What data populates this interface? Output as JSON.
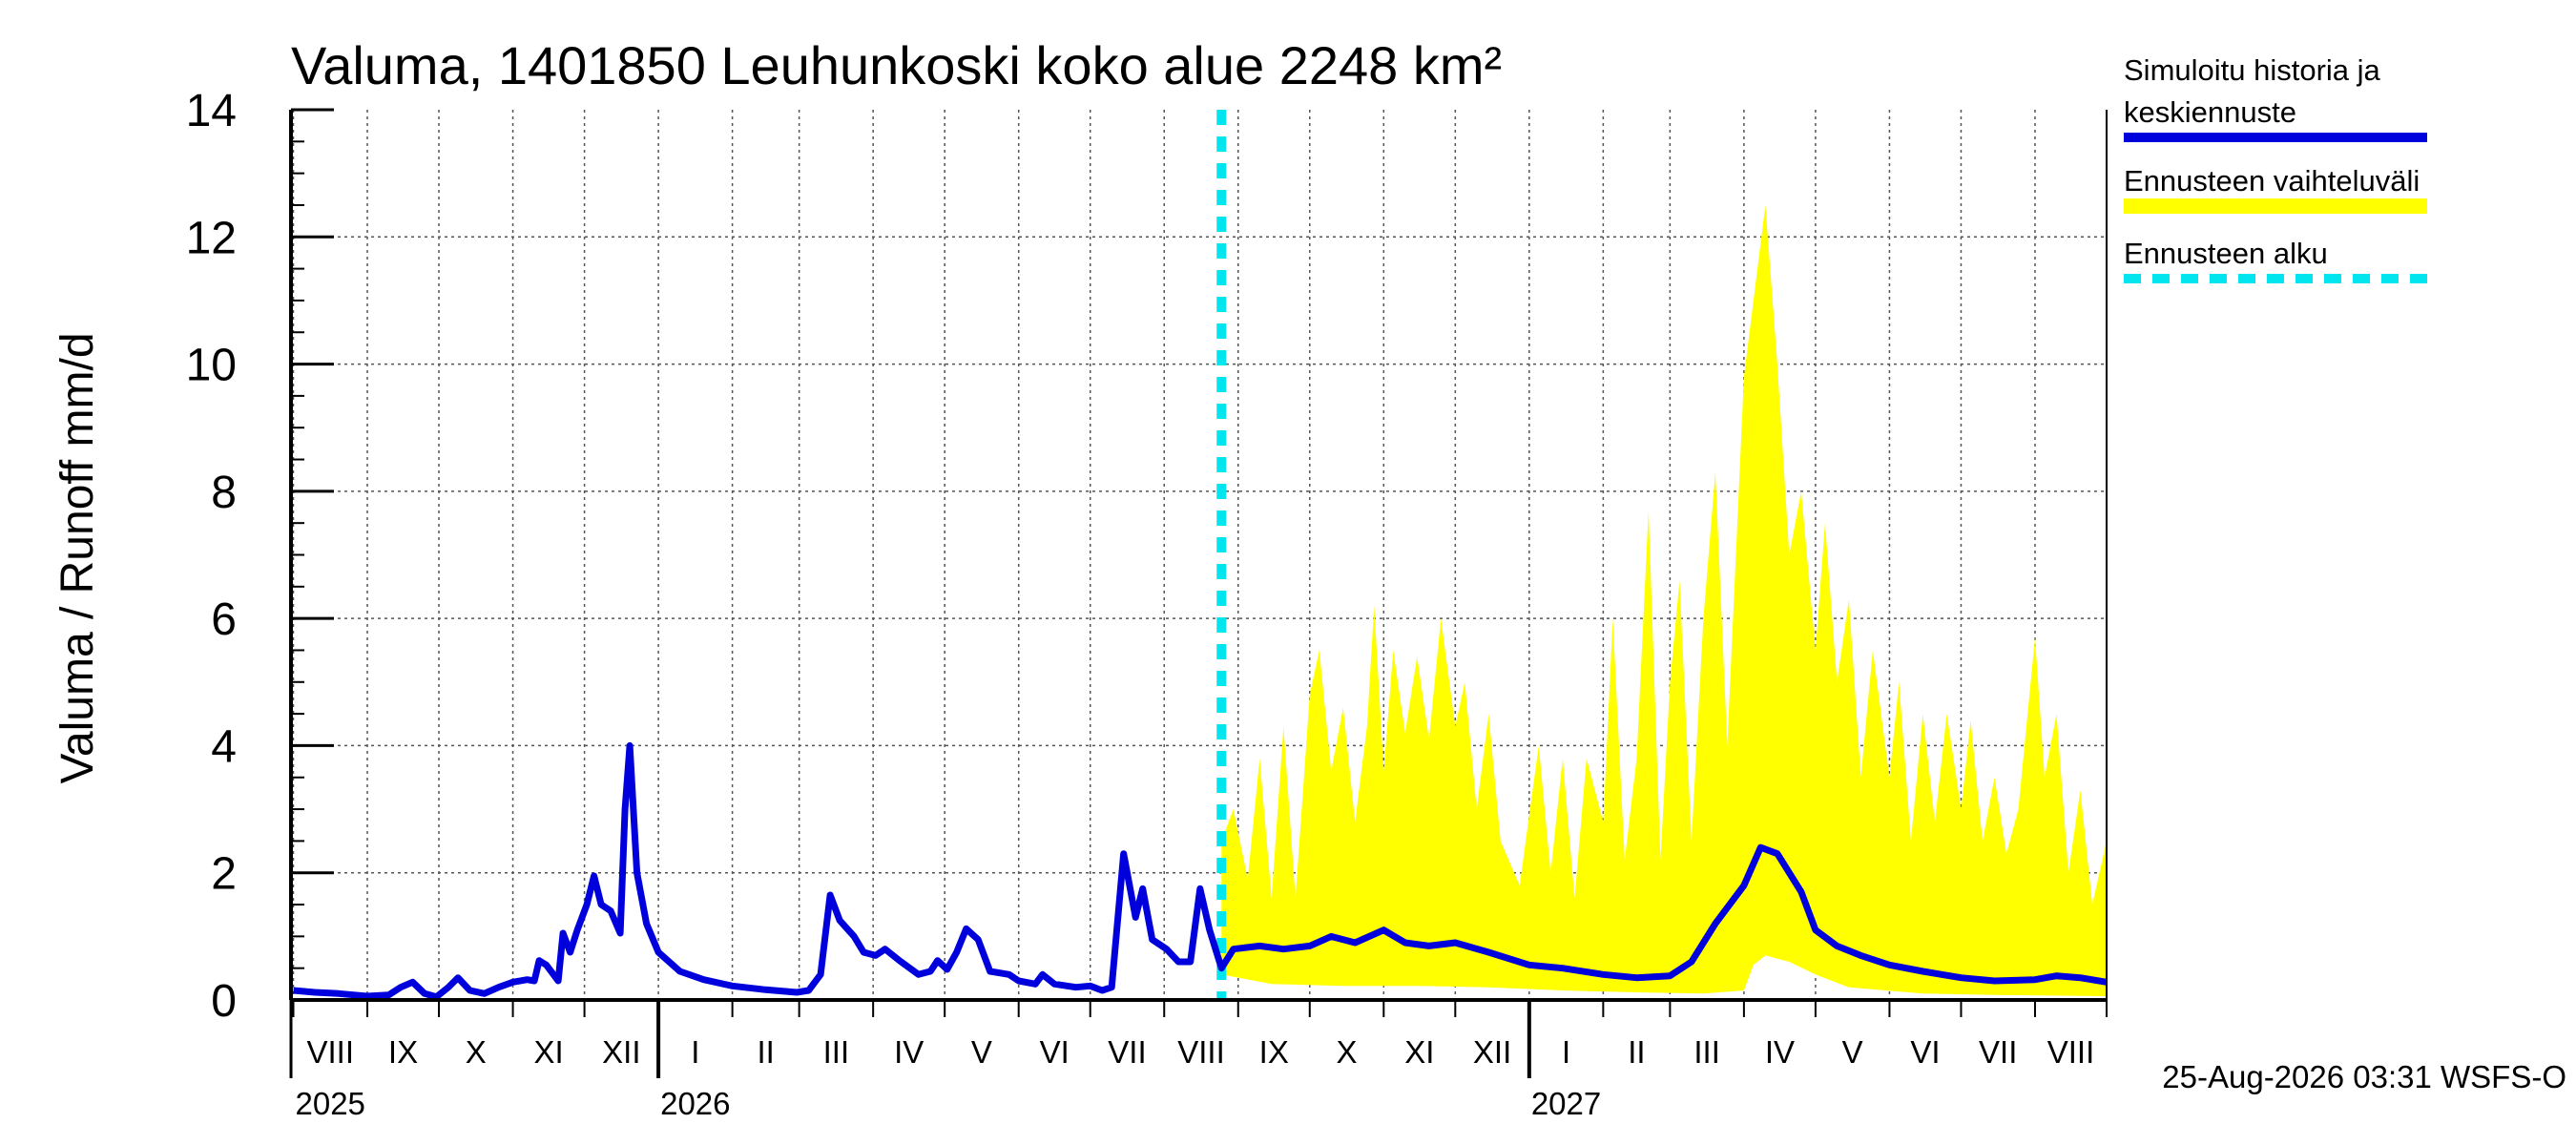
{
  "chart_data": {
    "type": "area",
    "title": "Valuma, 1401850 Leuhunkoski koko alue 2248 km²",
    "ylabel": "Valuma / Runoff    mm/d",
    "ylim": [
      0,
      14
    ],
    "yticks": [
      0,
      2,
      4,
      6,
      8,
      10,
      12,
      14
    ],
    "grid": true,
    "legend_position": "right",
    "x_axis": {
      "start": "2025-07-31",
      "end": "2027-08-31",
      "month_labels": [
        "VIII",
        "IX",
        "X",
        "XI",
        "XII",
        "I",
        "II",
        "III",
        "IV",
        "V",
        "VI",
        "VII",
        "VIII",
        "IX",
        "X",
        "XI",
        "XII",
        "I",
        "II",
        "III",
        "IV",
        "V",
        "VI",
        "VII",
        "VIII"
      ],
      "year_labels": [
        {
          "label": "2025",
          "date": "2025-08-01"
        },
        {
          "label": "2026",
          "date": "2026-01-01"
        },
        {
          "label": "2027",
          "date": "2027-01-01"
        }
      ]
    },
    "forecast_start": "2026-08-25",
    "series": [
      {
        "name": "Simuloitu historia ja keskiennuste",
        "color": "#0000dd",
        "points": [
          [
            "2025-08-01",
            0.15
          ],
          [
            "2025-08-10",
            0.12
          ],
          [
            "2025-08-20",
            0.1
          ],
          [
            "2025-09-01",
            0.06
          ],
          [
            "2025-09-10",
            0.08
          ],
          [
            "2025-09-15",
            0.2
          ],
          [
            "2025-09-20",
            0.28
          ],
          [
            "2025-09-25",
            0.1
          ],
          [
            "2025-09-30",
            0.05
          ],
          [
            "2025-10-05",
            0.2
          ],
          [
            "2025-10-09",
            0.35
          ],
          [
            "2025-10-14",
            0.15
          ],
          [
            "2025-10-20",
            0.1
          ],
          [
            "2025-10-26",
            0.2
          ],
          [
            "2025-11-01",
            0.28
          ],
          [
            "2025-11-07",
            0.32
          ],
          [
            "2025-11-10",
            0.3
          ],
          [
            "2025-11-12",
            0.62
          ],
          [
            "2025-11-15",
            0.55
          ],
          [
            "2025-11-18",
            0.4
          ],
          [
            "2025-11-20",
            0.3
          ],
          [
            "2025-11-22",
            1.05
          ],
          [
            "2025-11-25",
            0.75
          ],
          [
            "2025-11-28",
            1.1
          ],
          [
            "2025-12-02",
            1.5
          ],
          [
            "2025-12-05",
            1.95
          ],
          [
            "2025-12-08",
            1.5
          ],
          [
            "2025-12-12",
            1.4
          ],
          [
            "2025-12-16",
            1.05
          ],
          [
            "2025-12-18",
            3.0
          ],
          [
            "2025-12-20",
            4.0
          ],
          [
            "2025-12-23",
            2.0
          ],
          [
            "2025-12-27",
            1.2
          ],
          [
            "2026-01-01",
            0.75
          ],
          [
            "2026-01-10",
            0.45
          ],
          [
            "2026-01-20",
            0.32
          ],
          [
            "2026-02-01",
            0.22
          ],
          [
            "2026-02-15",
            0.16
          ],
          [
            "2026-02-28",
            0.12
          ],
          [
            "2026-03-05",
            0.15
          ],
          [
            "2026-03-10",
            0.4
          ],
          [
            "2026-03-14",
            1.65
          ],
          [
            "2026-03-18",
            1.25
          ],
          [
            "2026-03-24",
            1.0
          ],
          [
            "2026-03-28",
            0.75
          ],
          [
            "2026-04-02",
            0.7
          ],
          [
            "2026-04-06",
            0.8
          ],
          [
            "2026-04-12",
            0.62
          ],
          [
            "2026-04-20",
            0.4
          ],
          [
            "2026-04-25",
            0.45
          ],
          [
            "2026-04-28",
            0.62
          ],
          [
            "2026-05-02",
            0.48
          ],
          [
            "2026-05-06",
            0.75
          ],
          [
            "2026-05-10",
            1.12
          ],
          [
            "2026-05-15",
            0.95
          ],
          [
            "2026-05-20",
            0.45
          ],
          [
            "2026-05-28",
            0.4
          ],
          [
            "2026-06-01",
            0.3
          ],
          [
            "2026-06-08",
            0.25
          ],
          [
            "2026-06-11",
            0.4
          ],
          [
            "2026-06-16",
            0.25
          ],
          [
            "2026-06-25",
            0.2
          ],
          [
            "2026-07-01",
            0.22
          ],
          [
            "2026-07-06",
            0.15
          ],
          [
            "2026-07-10",
            0.2
          ],
          [
            "2026-07-15",
            2.3
          ],
          [
            "2026-07-20",
            1.3
          ],
          [
            "2026-07-23",
            1.75
          ],
          [
            "2026-07-27",
            0.95
          ],
          [
            "2026-08-02",
            0.8
          ],
          [
            "2026-08-07",
            0.6
          ],
          [
            "2026-08-12",
            0.6
          ],
          [
            "2026-08-16",
            1.75
          ],
          [
            "2026-08-20",
            1.1
          ],
          [
            "2026-08-25",
            0.5
          ],
          [
            "2026-08-30",
            0.8
          ],
          [
            "2026-09-10",
            0.85
          ],
          [
            "2026-09-20",
            0.8
          ],
          [
            "2026-10-01",
            0.85
          ],
          [
            "2026-10-10",
            1.0
          ],
          [
            "2026-10-20",
            0.9
          ],
          [
            "2026-11-01",
            1.1
          ],
          [
            "2026-11-10",
            0.9
          ],
          [
            "2026-11-20",
            0.85
          ],
          [
            "2026-12-01",
            0.9
          ],
          [
            "2026-12-15",
            0.75
          ],
          [
            "2027-01-01",
            0.55
          ],
          [
            "2027-01-15",
            0.5
          ],
          [
            "2027-02-01",
            0.4
          ],
          [
            "2027-02-15",
            0.35
          ],
          [
            "2027-03-01",
            0.38
          ],
          [
            "2027-03-10",
            0.6
          ],
          [
            "2027-03-20",
            1.2
          ],
          [
            "2027-04-01",
            1.8
          ],
          [
            "2027-04-08",
            2.4
          ],
          [
            "2027-04-15",
            2.3
          ],
          [
            "2027-04-25",
            1.7
          ],
          [
            "2027-05-01",
            1.1
          ],
          [
            "2027-05-10",
            0.85
          ],
          [
            "2027-05-20",
            0.7
          ],
          [
            "2027-06-01",
            0.55
          ],
          [
            "2027-06-15",
            0.45
          ],
          [
            "2027-07-01",
            0.35
          ],
          [
            "2027-07-15",
            0.3
          ],
          [
            "2027-08-01",
            0.32
          ],
          [
            "2027-08-10",
            0.38
          ],
          [
            "2027-08-20",
            0.35
          ],
          [
            "2027-08-31",
            0.28
          ]
        ]
      },
      {
        "name": "Ennusteen vaihteluväli",
        "color": "#ffff00",
        "upper": [
          [
            "2026-08-25",
            2.5
          ],
          [
            "2026-08-30",
            3.0
          ],
          [
            "2026-09-05",
            1.9
          ],
          [
            "2026-09-10",
            3.8
          ],
          [
            "2026-09-15",
            1.6
          ],
          [
            "2026-09-20",
            4.3
          ],
          [
            "2026-09-25",
            1.6
          ],
          [
            "2026-10-01",
            4.8
          ],
          [
            "2026-10-05",
            5.5
          ],
          [
            "2026-10-10",
            3.6
          ],
          [
            "2026-10-15",
            4.6
          ],
          [
            "2026-10-20",
            2.8
          ],
          [
            "2026-10-25",
            4.3
          ],
          [
            "2026-10-28",
            6.2
          ],
          [
            "2026-11-01",
            3.6
          ],
          [
            "2026-11-05",
            5.5
          ],
          [
            "2026-11-10",
            4.2
          ],
          [
            "2026-11-15",
            5.4
          ],
          [
            "2026-11-20",
            4.1
          ],
          [
            "2026-11-25",
            6.0
          ],
          [
            "2026-12-01",
            4.3
          ],
          [
            "2026-12-05",
            5.0
          ],
          [
            "2026-12-10",
            3.0
          ],
          [
            "2026-12-15",
            4.5
          ],
          [
            "2026-12-20",
            2.5
          ],
          [
            "2026-12-28",
            1.8
          ],
          [
            "2027-01-05",
            4.0
          ],
          [
            "2027-01-10",
            2.0
          ],
          [
            "2027-01-15",
            3.8
          ],
          [
            "2027-01-20",
            1.6
          ],
          [
            "2027-01-25",
            3.8
          ],
          [
            "2027-02-01",
            2.8
          ],
          [
            "2027-02-05",
            6.0
          ],
          [
            "2027-02-10",
            2.2
          ],
          [
            "2027-02-15",
            3.8
          ],
          [
            "2027-02-20",
            7.7
          ],
          [
            "2027-02-25",
            2.2
          ],
          [
            "2027-03-01",
            5.0
          ],
          [
            "2027-03-05",
            6.6
          ],
          [
            "2027-03-10",
            2.5
          ],
          [
            "2027-03-15",
            6.0
          ],
          [
            "2027-03-20",
            8.3
          ],
          [
            "2027-03-25",
            4.0
          ],
          [
            "2027-04-01",
            9.8
          ],
          [
            "2027-04-05",
            11.0
          ],
          [
            "2027-04-10",
            12.5
          ],
          [
            "2027-04-15",
            10.0
          ],
          [
            "2027-04-20",
            7.0
          ],
          [
            "2027-04-25",
            8.0
          ],
          [
            "2027-05-01",
            5.5
          ],
          [
            "2027-05-05",
            7.5
          ],
          [
            "2027-05-10",
            5.0
          ],
          [
            "2027-05-15",
            6.3
          ],
          [
            "2027-05-20",
            3.5
          ],
          [
            "2027-05-25",
            5.5
          ],
          [
            "2027-06-01",
            3.5
          ],
          [
            "2027-06-05",
            5.0
          ],
          [
            "2027-06-10",
            2.5
          ],
          [
            "2027-06-15",
            4.5
          ],
          [
            "2027-06-20",
            2.8
          ],
          [
            "2027-06-25",
            4.5
          ],
          [
            "2027-07-01",
            3.0
          ],
          [
            "2027-07-05",
            4.4
          ],
          [
            "2027-07-10",
            2.5
          ],
          [
            "2027-07-15",
            3.5
          ],
          [
            "2027-07-20",
            2.3
          ],
          [
            "2027-07-25",
            3.0
          ],
          [
            "2027-08-01",
            5.7
          ],
          [
            "2027-08-05",
            3.5
          ],
          [
            "2027-08-10",
            4.5
          ],
          [
            "2027-08-15",
            2.0
          ],
          [
            "2027-08-20",
            3.3
          ],
          [
            "2027-08-25",
            1.5
          ],
          [
            "2027-08-31",
            2.5
          ]
        ],
        "lower": [
          [
            "2026-08-25",
            0.4
          ],
          [
            "2026-09-15",
            0.25
          ],
          [
            "2026-10-15",
            0.22
          ],
          [
            "2026-11-15",
            0.22
          ],
          [
            "2026-12-15",
            0.2
          ],
          [
            "2027-01-15",
            0.15
          ],
          [
            "2027-02-15",
            0.12
          ],
          [
            "2027-03-15",
            0.1
          ],
          [
            "2027-04-01",
            0.15
          ],
          [
            "2027-04-05",
            0.55
          ],
          [
            "2027-04-10",
            0.7
          ],
          [
            "2027-04-20",
            0.6
          ],
          [
            "2027-05-01",
            0.4
          ],
          [
            "2027-05-15",
            0.2
          ],
          [
            "2027-06-15",
            0.1
          ],
          [
            "2027-07-15",
            0.08
          ],
          [
            "2027-08-31",
            0.06
          ]
        ]
      },
      {
        "name": "Ennusteen alku",
        "color": "#00e5ee"
      }
    ],
    "footer": "25-Aug-2026 03:31 WSFS-O"
  }
}
